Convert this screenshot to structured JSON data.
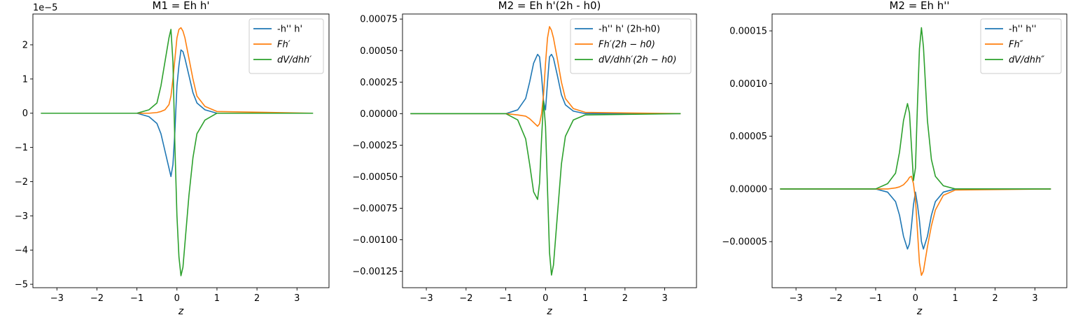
{
  "chart_data": [
    {
      "type": "line",
      "title": "M1 = Eh h'",
      "xlabel": "z",
      "ylabel": "",
      "offset_text": "1e−5",
      "xlim": [
        -3.6,
        3.8
      ],
      "ylim": [
        -5.1,
        2.9
      ],
      "xticks": [
        -3,
        -2,
        -1,
        0,
        1,
        2,
        3
      ],
      "xtick_labels": [
        "−3",
        "−2",
        "−1",
        "0",
        "1",
        "2",
        "3"
      ],
      "yticks": [
        -5,
        -4,
        -3,
        -2,
        -1,
        0,
        1,
        2
      ],
      "ytick_labels": [
        "−5",
        "−4",
        "−3",
        "−2",
        "−1",
        "0",
        "1",
        "2"
      ],
      "legend_position": "top-right",
      "grid": false,
      "x": [
        -3.4,
        -1.0,
        -0.7,
        -0.5,
        -0.4,
        -0.3,
        -0.2,
        -0.15,
        -0.1,
        -0.05,
        0.0,
        0.05,
        0.1,
        0.15,
        0.2,
        0.3,
        0.4,
        0.5,
        0.7,
        1.0,
        3.4
      ],
      "series": [
        {
          "name": "-h'' h'",
          "color": "#1f77b4",
          "values": [
            0,
            0,
            -0.1,
            -0.3,
            -0.6,
            -1.1,
            -1.6,
            -1.85,
            -1.5,
            -0.5,
            0.8,
            1.4,
            1.85,
            1.8,
            1.6,
            1.1,
            0.6,
            0.3,
            0.1,
            0,
            0
          ]
        },
        {
          "name": "Fh′",
          "color": "#ff7f0e",
          "values": [
            0,
            0,
            0,
            0.02,
            0.05,
            0.1,
            0.25,
            0.5,
            1.0,
            1.6,
            2.2,
            2.45,
            2.5,
            2.4,
            2.2,
            1.6,
            1.0,
            0.5,
            0.2,
            0.05,
            0
          ]
        },
        {
          "name": "dV/dhh′",
          "color": "#2ca02c",
          "values": [
            0,
            0,
            0.1,
            0.3,
            0.8,
            1.5,
            2.2,
            2.45,
            1.5,
            -1.0,
            -3.0,
            -4.2,
            -4.75,
            -4.5,
            -3.8,
            -2.4,
            -1.3,
            -0.6,
            -0.2,
            0,
            0
          ]
        }
      ]
    },
    {
      "type": "line",
      "title": "M2 = Eh h'(2h - h0)",
      "xlabel": "z",
      "ylabel": "",
      "offset_text": "",
      "xlim": [
        -3.6,
        3.8
      ],
      "ylim": [
        -0.00138,
        0.00079
      ],
      "xticks": [
        -3,
        -2,
        -1,
        0,
        1,
        2,
        3
      ],
      "xtick_labels": [
        "−3",
        "−2",
        "−1",
        "0",
        "1",
        "2",
        "3"
      ],
      "yticks": [
        -0.00125,
        -0.001,
        -0.00075,
        -0.0005,
        -0.00025,
        0,
        0.00025,
        0.0005,
        0.00075
      ],
      "ytick_labels": [
        "−0.00125",
        "−0.00100",
        "−0.00075",
        "−0.00050",
        "−0.00025",
        "0.00000",
        "0.00025",
        "0.00050",
        "0.00075"
      ],
      "legend_position": "top-right",
      "grid": false,
      "x": [
        -3.4,
        -1.0,
        -0.7,
        -0.5,
        -0.4,
        -0.3,
        -0.2,
        -0.15,
        -0.1,
        -0.05,
        0.0,
        0.05,
        0.1,
        0.15,
        0.2,
        0.3,
        0.4,
        0.5,
        0.7,
        1.0,
        3.4
      ],
      "series": [
        {
          "name": "-h'' h' (2h-h0)",
          "color": "#1f77b4",
          "values": [
            0,
            0,
            3e-05,
            0.00012,
            0.00025,
            0.0004,
            0.00047,
            0.00045,
            0.0003,
            0.0001,
            3e-05,
            0.00025,
            0.00045,
            0.00047,
            0.00044,
            0.0003,
            0.00015,
            7e-05,
            2e-05,
            0,
            0
          ]
        },
        {
          "name": "Fh′(2h − h0)",
          "color": "#ff7f0e",
          "values": [
            0,
            0,
            -1e-05,
            -2e-05,
            -4e-05,
            -7e-05,
            -0.0001,
            -8e-05,
            0,
            0.00015,
            0.0004,
            0.0006,
            0.00069,
            0.00066,
            0.0006,
            0.00043,
            0.00025,
            0.00012,
            4e-05,
            1e-05,
            0
          ]
        },
        {
          "name": "dV/dhh′(2h − h0)",
          "color": "#2ca02c",
          "values": [
            0,
            0,
            -5e-05,
            -0.0002,
            -0.0004,
            -0.00062,
            -0.00068,
            -0.00055,
            -0.0002,
            0.0001,
            -0.0001,
            -0.0006,
            -0.0011,
            -0.00128,
            -0.0012,
            -0.0008,
            -0.0004,
            -0.00018,
            -5e-05,
            -1e-05,
            0
          ]
        }
      ]
    },
    {
      "type": "line",
      "title": "M2 = Eh h''",
      "xlabel": "z",
      "ylabel": "",
      "offset_text": "",
      "xlim": [
        -3.6,
        3.8
      ],
      "ylim": [
        -9.37e-05,
        0.000166
      ],
      "xticks": [
        -3,
        -2,
        -1,
        0,
        1,
        2,
        3
      ],
      "xtick_labels": [
        "−3",
        "−2",
        "−1",
        "0",
        "1",
        "2",
        "3"
      ],
      "yticks": [
        -5e-05,
        0,
        5e-05,
        0.0001,
        0.00015
      ],
      "ytick_labels": [
        "−0.00005",
        "0.00000",
        "0.00005",
        "0.00010",
        "0.00015"
      ],
      "legend_position": "top-right",
      "grid": false,
      "x": [
        -3.4,
        -1.0,
        -0.7,
        -0.5,
        -0.4,
        -0.3,
        -0.2,
        -0.15,
        -0.1,
        -0.05,
        0.0,
        0.05,
        0.1,
        0.15,
        0.2,
        0.3,
        0.4,
        0.5,
        0.7,
        1.0,
        3.4
      ],
      "series": [
        {
          "name": "-h'' h''",
          "color": "#1f77b4",
          "values": [
            0,
            0,
            -3e-06,
            -1.2e-05,
            -2.5e-05,
            -4.5e-05,
            -5.7e-05,
            -5.2e-05,
            -3.5e-05,
            -1.5e-05,
            -3e-06,
            -1.5e-05,
            -3e-05,
            -5e-05,
            -5.7e-05,
            -4.5e-05,
            -2.5e-05,
            -1.2e-05,
            -3e-06,
            0,
            0
          ]
        },
        {
          "name": "Fh″",
          "color": "#ff7f0e",
          "values": [
            0,
            0,
            0,
            1e-06,
            2e-06,
            4e-06,
            8e-06,
            1.1e-05,
            1.2e-05,
            5e-06,
            -1e-05,
            -4e-05,
            -7e-05,
            -8.2e-05,
            -7.8e-05,
            -5.5e-05,
            -3.5e-05,
            -2e-05,
            -6e-06,
            -1e-06,
            0
          ]
        },
        {
          "name": "dV/dhh″",
          "color": "#2ca02c",
          "values": [
            0,
            0,
            5e-06,
            1.5e-05,
            3.5e-05,
            6.5e-05,
            8.1e-05,
            7.2e-05,
            4e-05,
            8e-06,
            2e-05,
            8e-05,
            0.000133,
            0.000153,
            0.000135,
            6.5e-05,
            2.8e-05,
            1.2e-05,
            3e-06,
            0,
            0
          ]
        }
      ]
    }
  ]
}
